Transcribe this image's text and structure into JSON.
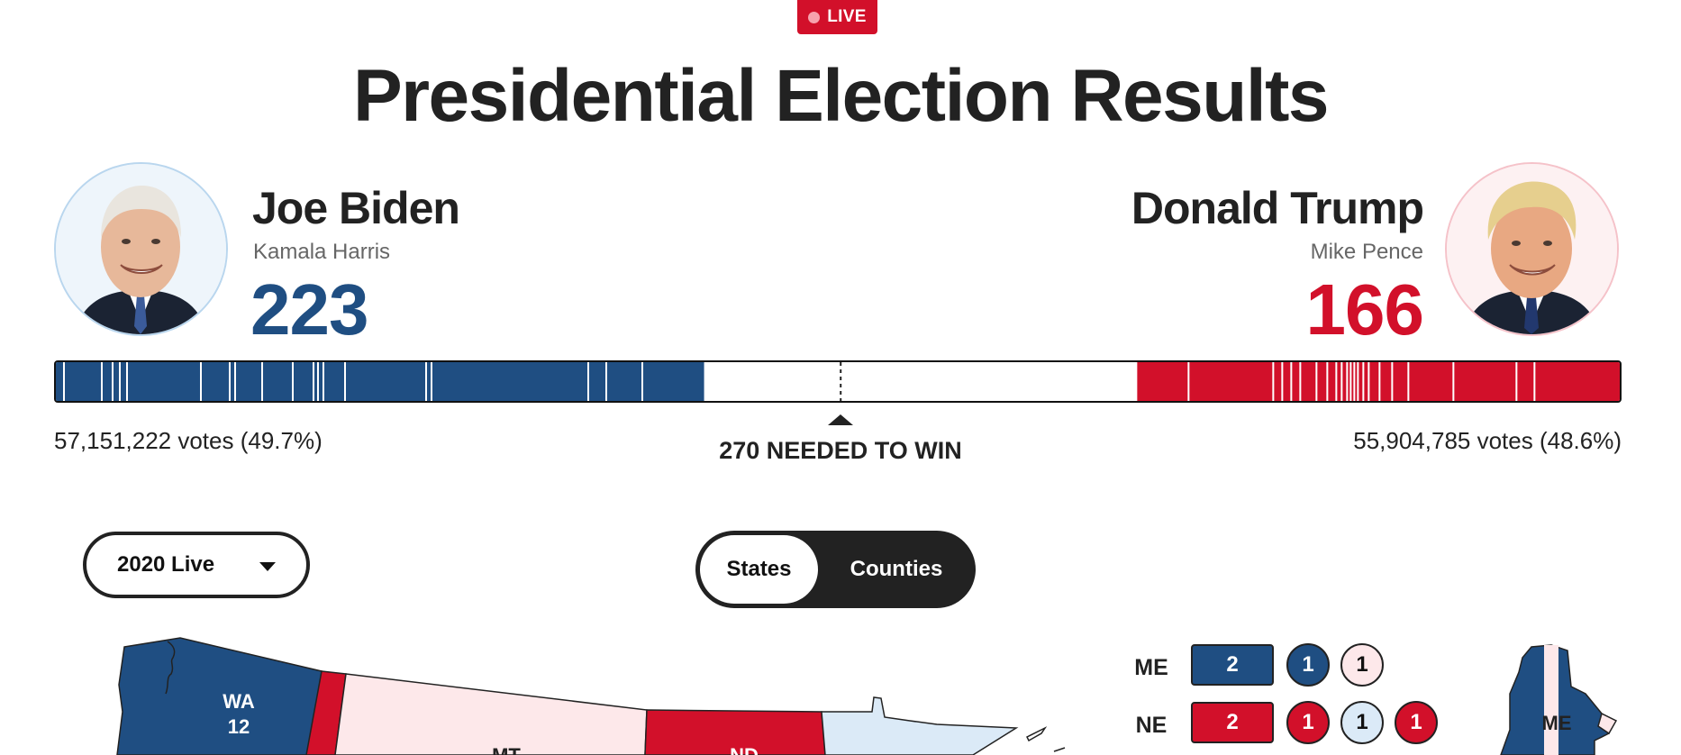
{
  "badge": {
    "label": "LIVE"
  },
  "title": "Presidential Election Results",
  "colors": {
    "dem": "#1f4e82",
    "rep": "#d2102a",
    "dem_light": "#dbeaf7",
    "rep_light": "#fde8ea"
  },
  "democrat": {
    "name": "Joe Biden",
    "running_mate": "Kamala Harris",
    "electoral_votes": "223",
    "popular_votes": "57,151,222 votes (49.7%)",
    "avatar_icon": "candidate-photo-biden"
  },
  "republican": {
    "name": "Donald Trump",
    "running_mate": "Mike Pence",
    "electoral_votes": "166",
    "popular_votes": "55,904,785 votes (48.6%)",
    "avatar_icon": "candidate-photo-trump"
  },
  "threshold": {
    "label": "270 NEEDED TO WIN",
    "value": 270,
    "total": 538
  },
  "controls": {
    "year_select": "2020 Live",
    "view_toggle": [
      {
        "label": "States",
        "selected": true
      },
      {
        "label": "Counties",
        "selected": false
      }
    ]
  },
  "districts": [
    {
      "state": "ME",
      "statewide": "2",
      "statewide_party": "dem",
      "districts": [
        {
          "label": "1",
          "party": "dem"
        },
        {
          "label": "1",
          "party": "rep_light"
        }
      ]
    },
    {
      "state": "NE",
      "statewide": "2",
      "statewide_party": "rep",
      "districts": [
        {
          "label": "1",
          "party": "rep"
        },
        {
          "label": "1",
          "party": "dem_light"
        },
        {
          "label": "1",
          "party": "rep"
        }
      ]
    }
  ],
  "map": {
    "labels": [
      {
        "abbr": "WA",
        "ev": "12"
      },
      {
        "abbr": "MT",
        "ev": ""
      },
      {
        "abbr": "ND",
        "ev": ""
      },
      {
        "abbr": "ME",
        "ev": ""
      }
    ]
  }
}
